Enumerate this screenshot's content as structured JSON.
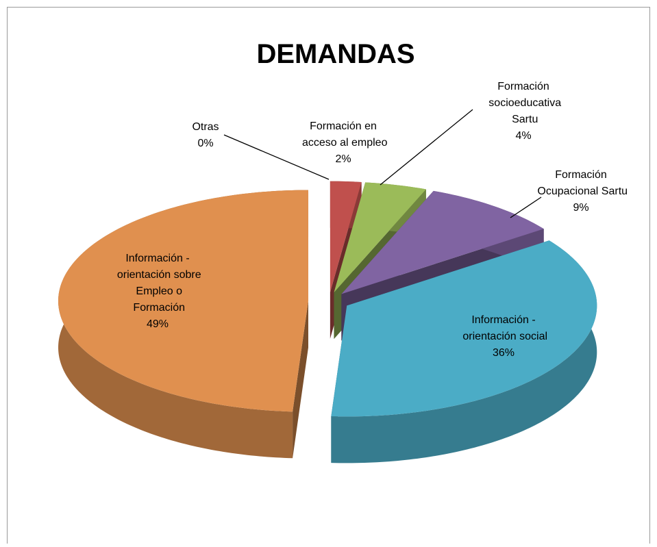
{
  "chart_data": {
    "type": "pie3d",
    "title": "DEMANDAS",
    "categories": [
      "Otras",
      "Formación en acceso al empleo",
      "Formación socioeducativa Sartu",
      "Formación Ocupacional Sartu",
      "Información - orientación social",
      "Información - orientación sobre Empleo o Formación"
    ],
    "values": [
      0,
      2,
      4,
      9,
      36,
      49
    ],
    "value_labels": [
      "0%",
      "2%",
      "4%",
      "9%",
      "36%",
      "49%"
    ],
    "colors": [
      "#4f81bd",
      "#c0504d",
      "#9bbb59",
      "#8064a2",
      "#4bacc6",
      "#e0904f"
    ]
  }
}
